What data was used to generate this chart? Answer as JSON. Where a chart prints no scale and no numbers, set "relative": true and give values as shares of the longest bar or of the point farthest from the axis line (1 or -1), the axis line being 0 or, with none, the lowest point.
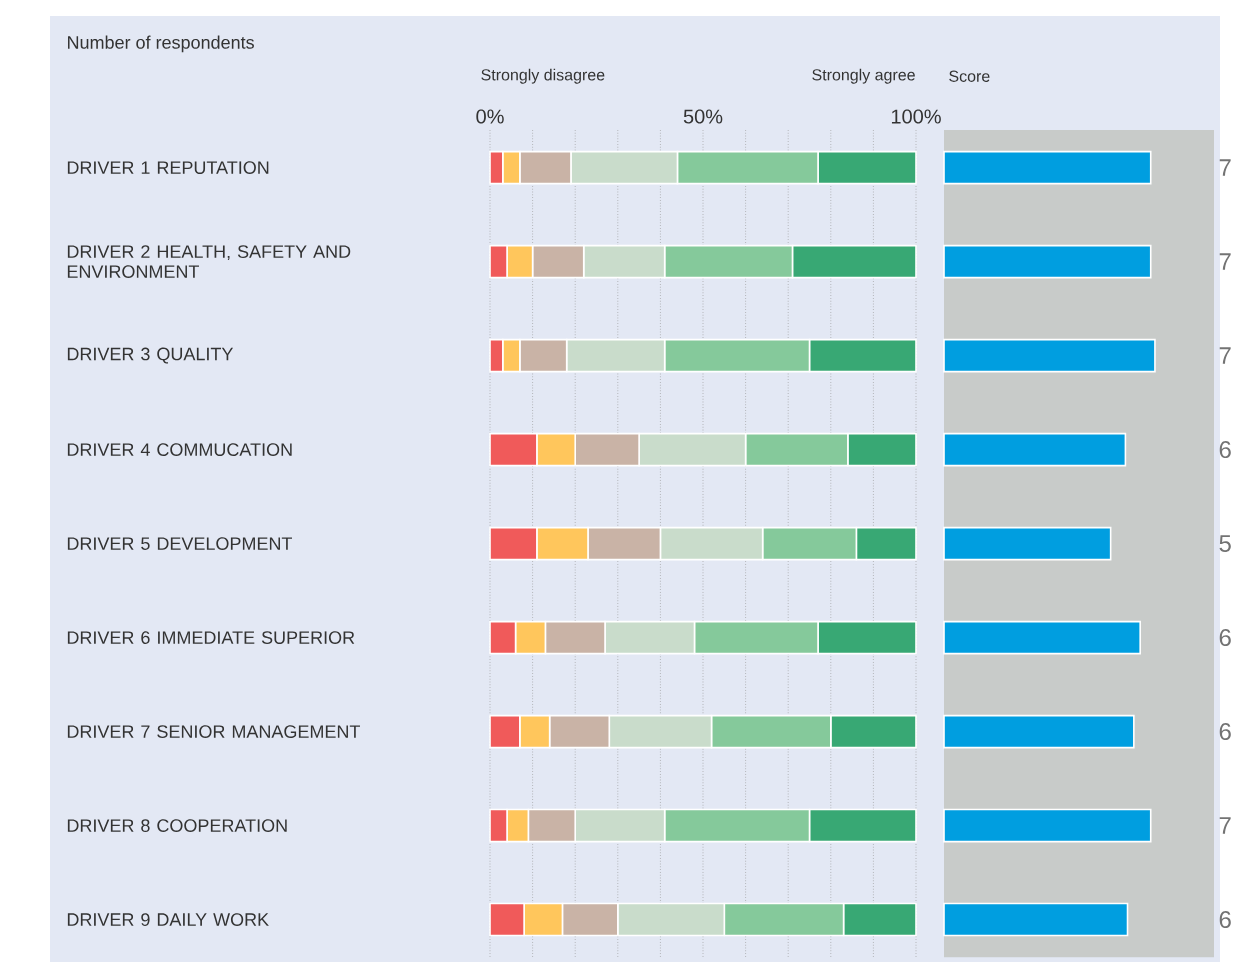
{
  "chart_data": [
    {
      "type": "bar",
      "orientation": "horizontal",
      "stacked": true,
      "title": "Number of respondents",
      "annotations": [
        "Strongly disagree",
        "Strongly agree"
      ],
      "categories": [
        "DRIVER 1  REPUTATION",
        "DRIVER 2  HEALTH, SAFETY AND ENVIRONMENT",
        "DRIVER 3  QUALITY",
        "DRIVER 4  COMMUCATION",
        "DRIVER 5  DEVELOPMENT",
        "DRIVER 6  IMMEDIATE SUPERIOR",
        "DRIVER 7  SENIOR MANAGEMENT",
        "DRIVER 8  COOPERATION",
        "DRIVER 9  DAILY WORK"
      ],
      "series": [
        {
          "color": "#f05a5a",
          "values": [
            3,
            4,
            3,
            11,
            11,
            6,
            7,
            4,
            8
          ]
        },
        {
          "color": "#ffc65c",
          "values": [
            4,
            6,
            4,
            9,
            12,
            7,
            7,
            5,
            9
          ]
        },
        {
          "color": "#c9b3a6",
          "values": [
            12,
            12,
            11,
            15,
            17,
            14,
            14,
            11,
            13
          ]
        },
        {
          "color": "#c9dccb",
          "values": [
            25,
            19,
            23,
            25,
            24,
            21,
            24,
            21,
            25
          ]
        },
        {
          "color": "#85c99b",
          "values": [
            33,
            30,
            34,
            24,
            22,
            29,
            28,
            34,
            28
          ]
        },
        {
          "color": "#38a874",
          "values": [
            23,
            29,
            25,
            16,
            14,
            23,
            20,
            25,
            17
          ]
        }
      ],
      "xlim": [
        0,
        100
      ],
      "xticks": [
        {
          "value": 0,
          "label": "0%"
        },
        {
          "value": 10,
          "label": null
        },
        {
          "value": 20,
          "label": null
        },
        {
          "value": 30,
          "label": null
        },
        {
          "value": 40,
          "label": null
        },
        {
          "value": 50,
          "label": "50%"
        },
        {
          "value": 60,
          "label": null
        },
        {
          "value": 70,
          "label": null
        },
        {
          "value": 80,
          "label": null
        },
        {
          "value": 90,
          "label": null
        },
        {
          "value": 100,
          "label": "100%"
        }
      ],
      "grid": "x"
    },
    {
      "type": "bar",
      "orientation": "horizontal",
      "relative": true,
      "title": "Score",
      "tick_labels": false,
      "categories": [
        null,
        null,
        null,
        null,
        null,
        null,
        null,
        null,
        null
      ],
      "color": "#009ee0",
      "values": [
        0.98,
        0.98,
        1,
        0.86,
        0.79,
        0.93,
        0.9,
        0.98,
        0.87
      ],
      "annotations": [
        "7",
        "7",
        "7",
        "6",
        "5",
        "6",
        "6",
        "7",
        "6"
      ]
    }
  ]
}
